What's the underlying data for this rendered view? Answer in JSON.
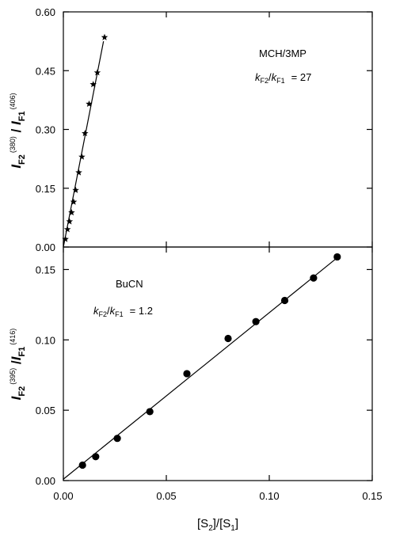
{
  "chart_data": [
    {
      "type": "scatter",
      "title": "",
      "xlim": [
        0.0,
        0.15
      ],
      "ylim": [
        0.0,
        0.6
      ],
      "yticks": [
        "0.00",
        "0.15",
        "0.30",
        "0.45",
        "0.60"
      ],
      "ylabel": {
        "base": "I",
        "sub1": "F2",
        "sup1": "(380)",
        "sep": " / ",
        "base2": "I",
        "sub2": "F1",
        "sup2": "(406)"
      },
      "annotation_solvent": "MCH/3MP",
      "annotation_ratio": {
        "k1": "k",
        "s1": "F2",
        "slash": "/",
        "k2": "k",
        "s2": "F1",
        "eq": "= 27"
      },
      "marker": "star",
      "series": [
        {
          "x": [
            0.001,
            0.002,
            0.003,
            0.004,
            0.005,
            0.006,
            0.0075,
            0.009,
            0.0105,
            0.0125,
            0.0145,
            0.0165,
            0.02
          ],
          "y": [
            0.02,
            0.045,
            0.065,
            0.088,
            0.115,
            0.145,
            0.19,
            0.23,
            0.29,
            0.365,
            0.415,
            0.445,
            0.535
          ]
        }
      ],
      "fit_line": {
        "x": [
          0.0,
          0.0195
        ],
        "y": [
          0.0,
          0.525
        ]
      }
    },
    {
      "type": "scatter",
      "title": "",
      "xlim": [
        0.0,
        0.15
      ],
      "ylim": [
        0.0,
        0.166
      ],
      "xticks": [
        "0.00",
        "0.05",
        "0.10",
        "0.15"
      ],
      "yticks": [
        "0.00",
        "0.05",
        "0.10",
        "0.15"
      ],
      "xlabel": {
        "open": "[S",
        "sub1": "2",
        "mid": "]/[S",
        "sub2": "1",
        "close": "]"
      },
      "ylabel": {
        "base": "I",
        "sub1": "F2",
        "sup1": "(395)",
        "sep": " /",
        "base2": "I",
        "sub2": "F1",
        "sup2": "(416)"
      },
      "annotation_solvent": "BuCN",
      "annotation_ratio": {
        "k1": "k",
        "s1": "F2",
        "slash": "/",
        "k2": "k",
        "s2": "F1",
        "eq": "= 1.2"
      },
      "marker": "circle",
      "series": [
        {
          "x": [
            0.0093,
            0.0157,
            0.0262,
            0.042,
            0.06,
            0.08,
            0.0935,
            0.1075,
            0.1215,
            0.133
          ],
          "y": [
            0.011,
            0.017,
            0.03,
            0.049,
            0.076,
            0.101,
            0.113,
            0.128,
            0.144,
            0.159
          ]
        }
      ],
      "fit_line": {
        "x": [
          0.0,
          0.1335
        ],
        "y": [
          0.001,
          0.159
        ]
      }
    }
  ]
}
